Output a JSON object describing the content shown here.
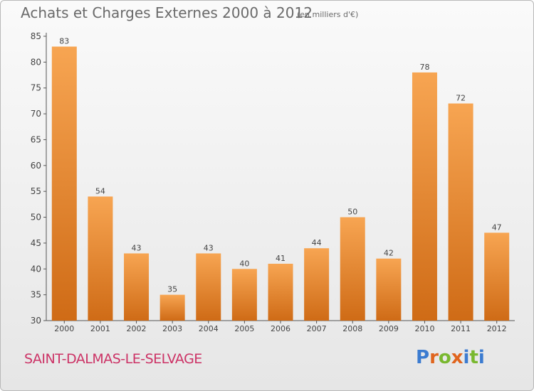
{
  "header": {
    "title": "Achats et Charges Externes 2000 à 2012",
    "unit": "(en milliers d'€)"
  },
  "footer": {
    "city": "SAINT-DALMAS-LE-SELVAGE",
    "logo": {
      "text": "Proxiti",
      "letters": [
        {
          "ch": "P",
          "color": "#3b7bd0"
        },
        {
          "ch": "r",
          "color": "#e0651e"
        },
        {
          "ch": "o",
          "color": "#79b82f"
        },
        {
          "ch": "x",
          "color": "#e0651e"
        },
        {
          "ch": "i",
          "color": "#3b7bd0"
        },
        {
          "ch": "t",
          "color": "#79b82f"
        },
        {
          "ch": "i",
          "color": "#3b7bd0"
        }
      ]
    }
  },
  "colors": {
    "bar_light": "#f7a552",
    "bar_dark": "#cf6b16",
    "axis": "#555555",
    "grid": "#c8c8c8",
    "text": "#444444"
  },
  "chart_data": {
    "type": "bar",
    "categories": [
      "2000",
      "2001",
      "2002",
      "2003",
      "2004",
      "2005",
      "2006",
      "2007",
      "2008",
      "2009",
      "2010",
      "2011",
      "2012"
    ],
    "values": [
      83,
      54,
      43,
      35,
      43,
      40,
      41,
      44,
      50,
      42,
      78,
      72,
      47
    ],
    "data_labels": [
      "83",
      "54",
      "43",
      "35",
      "43",
      "40",
      "41",
      "44",
      "50",
      "42",
      "78",
      "72",
      "47"
    ],
    "yticks": [
      30,
      35,
      40,
      45,
      50,
      55,
      60,
      65,
      70,
      75,
      80,
      85
    ],
    "ylim": [
      30,
      85
    ],
    "grid": false
  }
}
